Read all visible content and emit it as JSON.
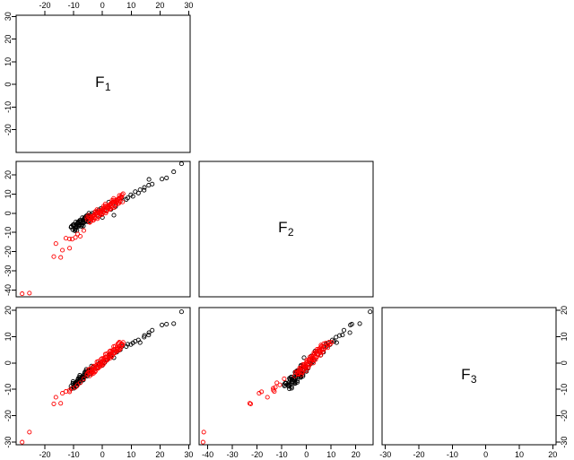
{
  "chart_data": {
    "type": "scatter",
    "subtype": "pairs-matrix-lower-triangle",
    "title": "",
    "grid": false,
    "legend": false,
    "point_colors": {
      "group1": "#000000",
      "group2": "#ff0000"
    },
    "marker": {
      "shape": "open-circle",
      "radius": 2.1,
      "stroke_width": 0.9
    },
    "variables": [
      {
        "base": "F",
        "sub": "1",
        "range": [
          -30,
          30.5
        ]
      },
      {
        "base": "F",
        "sub": "2",
        "range": [
          -43.5,
          27
        ]
      },
      {
        "base": "F",
        "sub": "3",
        "range": [
          -31,
          21
        ]
      }
    ],
    "axes": [
      {
        "side": "top",
        "row": 0,
        "col": 0,
        "var": 0,
        "ticks": [
          -20,
          -10,
          0,
          10,
          20,
          30
        ]
      },
      {
        "side": "left",
        "row": 0,
        "col": 0,
        "var": 0,
        "ticks": [
          30,
          20,
          10,
          0,
          -10,
          -20
        ]
      },
      {
        "side": "left",
        "row": 1,
        "col": 0,
        "var": 1,
        "ticks": [
          20,
          10,
          0,
          -10,
          -20,
          -30,
          -40
        ]
      },
      {
        "side": "left",
        "row": 2,
        "col": 0,
        "var": 2,
        "ticks": [
          20,
          10,
          0,
          -10,
          -20,
          -30
        ]
      },
      {
        "side": "bottom",
        "row": 2,
        "col": 0,
        "var": 0,
        "ticks": [
          -20,
          -10,
          0,
          10,
          20,
          30
        ]
      },
      {
        "side": "bottom",
        "row": 2,
        "col": 1,
        "var": 1,
        "ticks": [
          -40,
          -30,
          -20,
          -10,
          0,
          10,
          20
        ]
      },
      {
        "side": "bottom",
        "row": 2,
        "col": 2,
        "var": 2,
        "ticks": [
          -30,
          -20,
          -10,
          0,
          10,
          20
        ]
      },
      {
        "side": "right",
        "row": 2,
        "col": 2,
        "var": 2,
        "ticks": [
          20,
          10,
          0,
          -10,
          -20,
          -30
        ]
      }
    ],
    "scatter_panels": [
      {
        "row": 1,
        "col": 0,
        "xvar": 0,
        "yvar": 1
      },
      {
        "row": 2,
        "col": 0,
        "xvar": 0,
        "yvar": 2
      },
      {
        "row": 2,
        "col": 1,
        "xvar": 1,
        "yvar": 2
      }
    ],
    "diag_panels": [
      {
        "row": 0,
        "col": 0,
        "var": 0
      },
      {
        "row": 1,
        "col": 1,
        "var": 1
      },
      {
        "row": 2,
        "col": 2,
        "var": 2
      }
    ],
    "series": [
      {
        "name": "group-black",
        "color": "#000000",
        "points": [
          [
            -10.3,
            -8.6,
            -7.7
          ],
          [
            -10.8,
            -6.9,
            -9.8
          ],
          [
            -9.6,
            -9.1,
            -8.2
          ],
          [
            -10.9,
            -7.3,
            -8.8
          ],
          [
            -9.9,
            -6.0,
            -9.6
          ],
          [
            -9.4,
            -8.4,
            -7.7
          ],
          [
            -10.1,
            -6.7,
            -8.2
          ],
          [
            -8.9,
            -8.9,
            -8.7
          ],
          [
            -10.2,
            -6.0,
            -7.0
          ],
          [
            -9.1,
            -7.0,
            -8.8
          ],
          [
            -9.5,
            -8.4,
            -7.6
          ],
          [
            -10.0,
            -6.0,
            -9.0
          ],
          [
            -8.6,
            -5.4,
            -7.0
          ],
          [
            -9.0,
            -6.9,
            -7.2
          ],
          [
            -9.3,
            -7.5,
            -8.0
          ],
          [
            -8.1,
            -4.6,
            -7.1
          ],
          [
            -9.2,
            -5.9,
            -7.6
          ],
          [
            -8.4,
            -6.9,
            -5.8
          ],
          [
            -9.3,
            -4.6,
            -7.8
          ],
          [
            -7.9,
            -5.9,
            -6.3
          ],
          [
            -8.0,
            -6.3,
            -5.4
          ],
          [
            -8.5,
            -4.6,
            -7.5
          ],
          [
            -7.3,
            -6.8,
            -5.9
          ],
          [
            -8.6,
            -5.0,
            -6.5
          ],
          [
            -7.6,
            -3.7,
            -7.3
          ],
          [
            -7.1,
            -6.1,
            -5.4
          ],
          [
            -7.8,
            -4.4,
            -5.9
          ],
          [
            -6.6,
            -6.6,
            -6.4
          ],
          [
            -7.9,
            -3.7,
            -4.7
          ],
          [
            -6.8,
            -4.7,
            -6.5
          ],
          [
            -7.2,
            -6.1,
            -5.3
          ],
          [
            -7.7,
            -3.7,
            -6.7
          ],
          [
            -6.3,
            -3.1,
            -4.7
          ],
          [
            -6.7,
            -4.6,
            -4.9
          ],
          [
            -7.0,
            -5.2,
            -5.7
          ],
          [
            -5.8,
            -2.3,
            -4.8
          ],
          [
            -6.9,
            -3.6,
            -5.3
          ],
          [
            -6.1,
            -4.6,
            -3.5
          ],
          [
            -7.0,
            -2.3,
            -5.5
          ],
          [
            -5.6,
            -3.6,
            -4.0
          ],
          [
            -5.7,
            -4.0,
            -3.1
          ],
          [
            -6.2,
            -2.3,
            -5.2
          ],
          [
            -5.0,
            -4.5,
            -3.6
          ],
          [
            -6.3,
            -2.7,
            -4.2
          ],
          [
            -5.3,
            -1.4,
            -5.0
          ],
          [
            -4.8,
            -3.8,
            -3.1
          ],
          [
            -5.5,
            -2.1,
            -3.6
          ],
          [
            -4.3,
            -4.3,
            -4.1
          ],
          [
            -5.6,
            -1.4,
            -2.4
          ],
          [
            -4.5,
            -2.4,
            -4.2
          ],
          [
            -4.9,
            -3.8,
            -3.0
          ],
          [
            -5.4,
            -1.4,
            -4.4
          ],
          [
            -4.0,
            -0.8,
            -2.4
          ],
          [
            -4.4,
            -2.3,
            -2.6
          ],
          [
            -4.7,
            -2.9,
            -3.4
          ],
          [
            -3.5,
            0.0,
            -2.5
          ],
          [
            -4.6,
            -1.3,
            -3.0
          ],
          [
            -3.8,
            -2.3,
            -1.2
          ],
          [
            -4.7,
            0.0,
            -3.2
          ],
          [
            -3.3,
            -1.3,
            -1.7
          ],
          [
            -0.6,
            2.4,
            0.3
          ],
          [
            2.2,
            5.8,
            3.0
          ],
          [
            6.2,
            6.2,
            5.0
          ],
          [
            6.8,
            8.2,
            6.3
          ],
          [
            4.0,
            -1.0,
            2.0
          ],
          [
            -1.8,
            -0.9,
            -1.6
          ],
          [
            0.8,
            1.5,
            0.2
          ],
          [
            1.6,
            3.1,
            1.1
          ],
          [
            3.0,
            2.0,
            2.6
          ],
          [
            -2.6,
            0.6,
            -2.0
          ],
          [
            5.0,
            6.9,
            4.1
          ],
          [
            0.0,
            -2.2,
            -0.9
          ],
          [
            2.6,
            4.4,
            3.3
          ],
          [
            -1.2,
            1.8,
            -0.2
          ],
          [
            4.6,
            3.5,
            4.5
          ],
          [
            8.3,
            7.2,
            6.2
          ],
          [
            8.8,
            8.0,
            7.1
          ],
          [
            9.9,
            9.6,
            7.0
          ],
          [
            10.6,
            8.8,
            7.6
          ],
          [
            11.4,
            11.2,
            8.2
          ],
          [
            12.5,
            10.5,
            8.7
          ],
          [
            13.1,
            12.2,
            7.7
          ],
          [
            14.5,
            12.0,
            9.8
          ],
          [
            14.6,
            13.4,
            10.4
          ],
          [
            16.1,
            14.6,
            10.6
          ],
          [
            16.2,
            17.6,
            11.5
          ],
          [
            17.3,
            15.2,
            12.4
          ],
          [
            20.7,
            17.8,
            14.4
          ],
          [
            22.3,
            18.4,
            14.7
          ],
          [
            24.8,
            21.6,
            14.9
          ],
          [
            27.5,
            25.8,
            19.4
          ]
        ]
      },
      {
        "name": "group-red",
        "color": "#ff0000",
        "points": [
          [
            -5.3,
            -3.2,
            -4.0
          ],
          [
            -4.4,
            -4.4,
            -3.5
          ],
          [
            -5.4,
            -2.1,
            -4.5
          ],
          [
            -4.4,
            -4.8,
            -4.9
          ],
          [
            -3.6,
            -2.9,
            -2.7
          ],
          [
            -4.8,
            -1.9,
            -3.6
          ],
          [
            -3.8,
            -3.3,
            -4.3
          ],
          [
            -4.8,
            -1.0,
            -2.5
          ],
          [
            -3.3,
            -3.7,
            -3.4
          ],
          [
            -3.7,
            -1.7,
            -3.7
          ],
          [
            -4.3,
            -2.5,
            -2.3
          ],
          [
            -3.1,
            -3.6,
            -3.9
          ],
          [
            -2.7,
            -1.0,
            -2.5
          ],
          [
            -3.3,
            -1.7,
            -1.5
          ],
          [
            -3.5,
            -2.4,
            -3.2
          ],
          [
            -2.0,
            -0.1,
            -1.9
          ],
          [
            -2.6,
            -2.5,
            -3.4
          ],
          [
            -3.0,
            -0.9,
            -1.2
          ],
          [
            -1.7,
            -2.8,
            -1.9
          ],
          [
            -2.3,
            -0.1,
            -2.9
          ],
          [
            -2.4,
            -0.3,
            -1.1
          ],
          [
            -1.5,
            -1.5,
            -0.6
          ],
          [
            -2.5,
            0.8,
            -1.6
          ],
          [
            -1.5,
            -1.9,
            -2.0
          ],
          [
            -0.7,
            0.0,
            0.2
          ],
          [
            -1.9,
            1.0,
            -0.7
          ],
          [
            -0.9,
            -0.4,
            -1.4
          ],
          [
            -1.9,
            1.9,
            0.4
          ],
          [
            -0.4,
            -0.8,
            -0.5
          ],
          [
            -0.8,
            1.2,
            -0.8
          ],
          [
            -1.4,
            0.4,
            0.6
          ],
          [
            -0.2,
            -0.7,
            -1.0
          ],
          [
            0.2,
            1.9,
            0.4
          ],
          [
            -0.4,
            1.2,
            1.5
          ],
          [
            -0.6,
            0.5,
            -0.3
          ],
          [
            0.9,
            2.8,
            1.0
          ],
          [
            0.3,
            0.4,
            -0.5
          ],
          [
            -0.1,
            2.0,
            1.7
          ],
          [
            1.2,
            0.1,
            1.0
          ],
          [
            0.6,
            2.8,
            0.0
          ],
          [
            0.5,
            2.6,
            1.8
          ],
          [
            1.4,
            1.4,
            2.3
          ],
          [
            0.4,
            3.7,
            1.3
          ],
          [
            1.4,
            1.0,
            0.9
          ],
          [
            2.2,
            2.9,
            3.1
          ],
          [
            1.0,
            3.9,
            2.2
          ],
          [
            2.0,
            2.5,
            1.5
          ],
          [
            1.0,
            4.8,
            3.3
          ],
          [
            2.5,
            2.1,
            2.4
          ],
          [
            2.1,
            4.1,
            2.2
          ],
          [
            1.5,
            3.3,
            3.5
          ],
          [
            2.8,
            2.3,
            1.9
          ],
          [
            3.1,
            4.8,
            3.3
          ],
          [
            2.5,
            4.1,
            4.4
          ],
          [
            2.3,
            3.4,
            2.6
          ],
          [
            3.8,
            5.7,
            3.9
          ],
          [
            3.2,
            3.3,
            2.4
          ],
          [
            2.8,
            4.9,
            4.6
          ],
          [
            4.1,
            3.0,
            3.9
          ],
          [
            3.5,
            5.7,
            2.9
          ],
          [
            3.4,
            5.5,
            4.7
          ],
          [
            4.3,
            4.3,
            5.2
          ],
          [
            3.3,
            6.6,
            4.2
          ],
          [
            4.3,
            3.9,
            3.8
          ],
          [
            5.1,
            5.8,
            6.0
          ],
          [
            3.9,
            6.8,
            5.1
          ],
          [
            4.9,
            5.4,
            4.4
          ],
          [
            3.9,
            7.7,
            6.2
          ],
          [
            5.4,
            5.0,
            5.3
          ],
          [
            5.0,
            7.0,
            5.1
          ],
          [
            4.4,
            6.2,
            6.4
          ],
          [
            5.7,
            5.2,
            4.8
          ],
          [
            6.0,
            7.7,
            6.2
          ],
          [
            5.4,
            7.0,
            7.3
          ],
          [
            5.2,
            6.3,
            5.5
          ],
          [
            6.7,
            8.6,
            6.8
          ],
          [
            6.1,
            6.2,
            5.3
          ],
          [
            5.7,
            7.8,
            7.5
          ],
          [
            7.0,
            5.9,
            6.8
          ],
          [
            6.4,
            8.6,
            5.8
          ],
          [
            -6.5,
            -9.0,
            -6.0
          ],
          [
            -7.7,
            -12.0,
            -7.5
          ],
          [
            -8.6,
            -10.8,
            -8.3
          ],
          [
            -9.4,
            -12.6,
            -9.2
          ],
          [
            -10.5,
            -13.5,
            -9.6
          ],
          [
            -11.4,
            -13.4,
            -10.3
          ],
          [
            -12.7,
            -13.0,
            -10.8
          ],
          [
            -11.4,
            -18.2,
            -10.9
          ],
          [
            -13.9,
            -19.2,
            -11.5
          ],
          [
            -14.5,
            -23.0,
            -15.3
          ],
          [
            -16.9,
            -22.6,
            -15.5
          ],
          [
            -16.2,
            -15.8,
            -13.0
          ],
          [
            -25.4,
            -41.6,
            -26.2
          ],
          [
            -27.9,
            -41.9,
            -30.0
          ],
          [
            7.2,
            10.2,
            7.8
          ],
          [
            6.8,
            9.6,
            7.2
          ],
          [
            5.9,
            9.2,
            7.9
          ]
        ]
      }
    ]
  }
}
